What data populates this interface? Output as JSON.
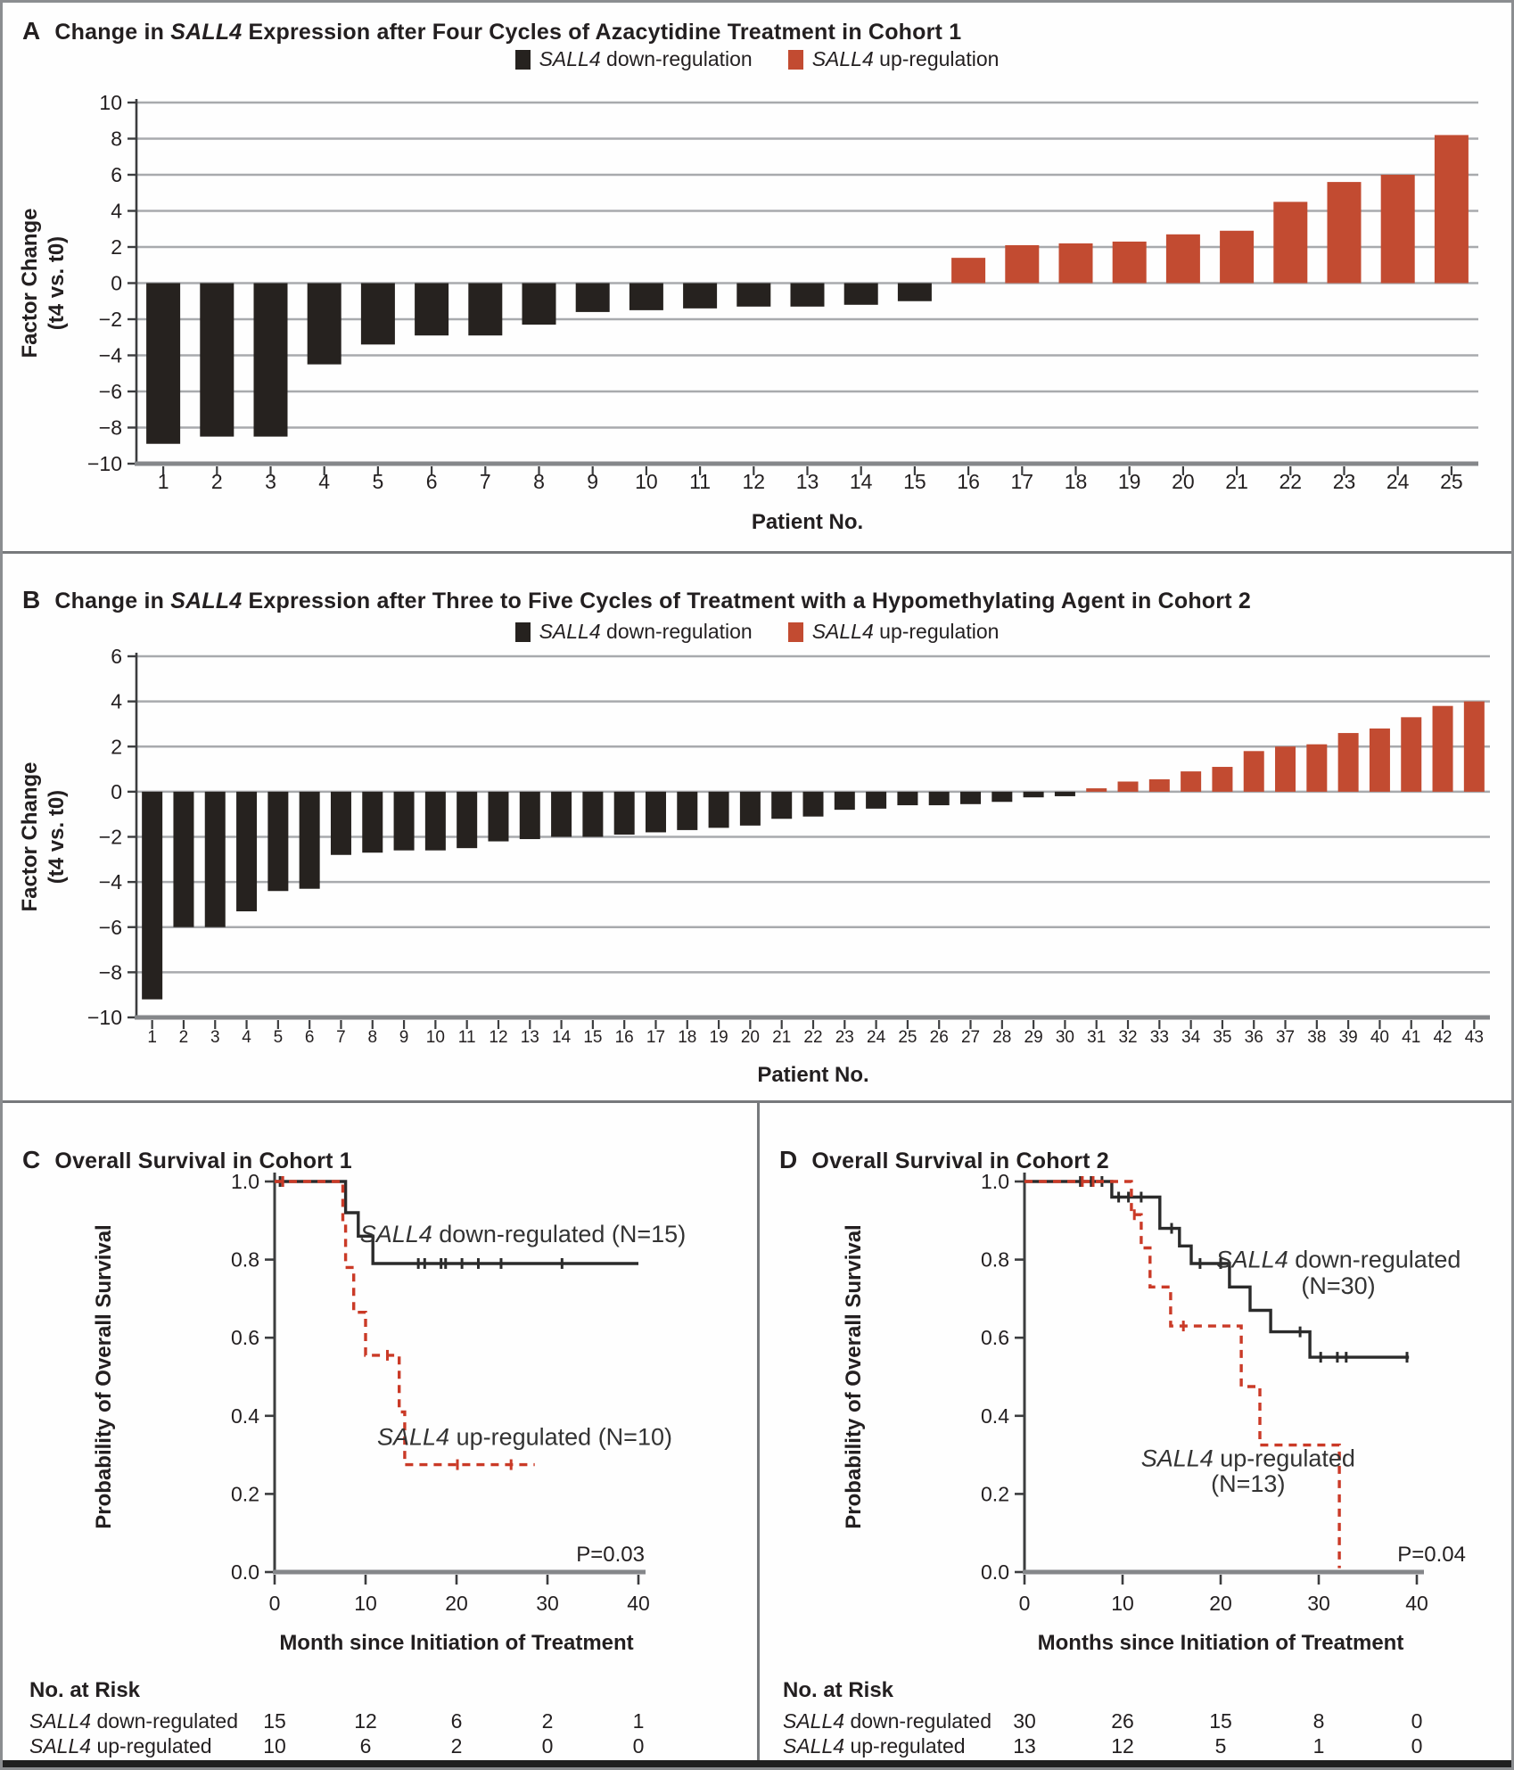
{
  "gene": "SALL4",
  "colors": {
    "down": "#26221f",
    "up": "#c24b31",
    "red_line": "#ca3a27",
    "grid": "#a8aaad",
    "axis_dark": "#3c3d3f",
    "axis_gray": "#85878a",
    "km_black": "#2b2b2b"
  },
  "panels": {
    "A": {
      "letter": "A",
      "title_pre": "Change in ",
      "title_post": " Expression after Four Cycles of Azacytidine Treatment in Cohort 1",
      "legend_down": " down-regulation",
      "legend_up": " up-regulation"
    },
    "B": {
      "letter": "B",
      "title_pre": "Change in ",
      "title_post": " Expression after Three to Five Cycles of Treatment with a Hypomethylating Agent in Cohort 2",
      "legend_down": " down-regulation",
      "legend_up": " up-regulation"
    },
    "C": {
      "letter": "C",
      "title": "Overall Survival in Cohort 1"
    },
    "D": {
      "letter": "D",
      "title": "Overall Survival in Cohort 2"
    }
  },
  "chart_data": [
    {
      "id": "A",
      "type": "bar",
      "title": "Change in SALL4 Expression after Four Cycles of Azacytidine Treatment in Cohort 1",
      "legend": [
        "SALL4 down-regulation",
        "SALL4 up-regulation"
      ],
      "ylabel_lines": [
        "Factor Change",
        "(t4 vs. t0)"
      ],
      "xlabel": "Patient No.",
      "ylim": [
        -10,
        10
      ],
      "yticks": [
        10,
        8,
        6,
        4,
        2,
        0,
        -2,
        -4,
        -6,
        -8,
        -10
      ],
      "categories": [
        "1",
        "2",
        "3",
        "4",
        "5",
        "6",
        "7",
        "8",
        "9",
        "10",
        "11",
        "12",
        "13",
        "14",
        "15",
        "16",
        "17",
        "18",
        "19",
        "20",
        "21",
        "22",
        "23",
        "24",
        "25"
      ],
      "values": [
        -8.9,
        -8.5,
        -8.5,
        -4.5,
        -3.4,
        -2.9,
        -2.9,
        -2.3,
        -1.6,
        -1.5,
        -1.4,
        -1.3,
        -1.3,
        -1.2,
        -1.0,
        1.4,
        2.1,
        2.2,
        2.3,
        2.7,
        2.9,
        4.5,
        5.6,
        6.0,
        8.2
      ]
    },
    {
      "id": "B",
      "type": "bar",
      "title": "Change in SALL4 Expression after Three to Five Cycles of Treatment with a Hypomethylating Agent in Cohort 2",
      "legend": [
        "SALL4 down-regulation",
        "SALL4 up-regulation"
      ],
      "ylabel_lines": [
        "Factor Change",
        "(t4 vs. t0)"
      ],
      "xlabel": "Patient No.",
      "ylim": [
        -10,
        6
      ],
      "yticks": [
        6,
        4,
        2,
        0,
        -2,
        -4,
        -6,
        -8,
        -10
      ],
      "categories": [
        "1",
        "2",
        "3",
        "4",
        "5",
        "6",
        "7",
        "8",
        "9",
        "10",
        "11",
        "12",
        "13",
        "14",
        "15",
        "16",
        "17",
        "18",
        "19",
        "20",
        "21",
        "22",
        "23",
        "24",
        "25",
        "26",
        "27",
        "28",
        "29",
        "30",
        "31",
        "32",
        "33",
        "34",
        "35",
        "36",
        "37",
        "38",
        "39",
        "40",
        "41",
        "42",
        "43"
      ],
      "values": [
        -9.2,
        -6.0,
        -6.0,
        -5.3,
        -4.4,
        -4.3,
        -2.8,
        -2.7,
        -2.6,
        -2.6,
        -2.5,
        -2.2,
        -2.1,
        -2.0,
        -2.0,
        -1.9,
        -1.8,
        -1.7,
        -1.6,
        -1.5,
        -1.2,
        -1.1,
        -0.8,
        -0.75,
        -0.6,
        -0.6,
        -0.55,
        -0.45,
        -0.25,
        -0.2,
        0.15,
        0.45,
        0.55,
        0.9,
        1.1,
        1.8,
        2.0,
        2.1,
        2.6,
        2.8,
        3.3,
        3.8,
        4.0
      ]
    },
    {
      "id": "C",
      "type": "km",
      "title": "Overall Survival in Cohort 1",
      "ylabel": "Probability of Overall Survival",
      "xlabel": "Month since Initiation of Treatment",
      "xlim": [
        0,
        40
      ],
      "xticks": [
        0,
        10,
        20,
        30,
        40
      ],
      "yticks": [
        "1.0",
        "0.8",
        "0.6",
        "0.4",
        "0.2",
        "0.0"
      ],
      "p_value": "P=0.03",
      "series": [
        {
          "key": "down",
          "style": "solid",
          "n": 15,
          "steps": [
            [
              0,
              1.0
            ],
            [
              7.8,
              1.0
            ],
            [
              7.8,
              0.92
            ],
            [
              9.2,
              0.92
            ],
            [
              9.2,
              0.86
            ],
            [
              10.8,
              0.86
            ],
            [
              10.8,
              0.79
            ],
            [
              40,
              0.79
            ]
          ],
          "censors": [
            [
              0.6,
              1.0
            ],
            [
              15.8,
              0.79
            ],
            [
              16.5,
              0.79
            ],
            [
              18.3,
              0.79
            ],
            [
              18.8,
              0.79
            ],
            [
              20.6,
              0.79
            ],
            [
              22.4,
              0.79
            ],
            [
              24.9,
              0.79
            ],
            [
              31.6,
              0.79
            ]
          ],
          "labels": [
            {
              "gene": "SALL4",
              "rest": " down-regulated (N=15)",
              "pos": [
                27.3,
                0.845
              ]
            }
          ]
        },
        {
          "key": "up",
          "style": "dashed",
          "n": 10,
          "steps": [
            [
              0,
              1.0
            ],
            [
              7.5,
              1.0
            ],
            [
              7.5,
              0.89
            ],
            [
              7.8,
              0.89
            ],
            [
              7.8,
              0.78
            ],
            [
              8.7,
              0.78
            ],
            [
              8.7,
              0.665
            ],
            [
              10,
              0.665
            ],
            [
              10,
              0.555
            ],
            [
              13.7,
              0.555
            ],
            [
              13.7,
              0.41
            ],
            [
              14.3,
              0.41
            ],
            [
              14.3,
              0.275
            ],
            [
              28.6,
              0.275
            ]
          ],
          "censors": [
            [
              0.9,
              1.0
            ],
            [
              12.4,
              0.555
            ],
            [
              20.1,
              0.275
            ],
            [
              26.0,
              0.275
            ]
          ],
          "labels": [
            {
              "gene": "SALL4",
              "rest": " up-regulated (N=10)",
              "pos": [
                27.5,
                0.325
              ]
            }
          ]
        }
      ],
      "at_risk": {
        "heading": "No. at Risk",
        "rows": [
          {
            "label": {
              "gene": "SALL4",
              "rest": " down-regulated"
            },
            "counts": [
              "15",
              "12",
              "6",
              "2",
              "1"
            ]
          },
          {
            "label": {
              "gene": "SALL4",
              "rest": " up-regulated"
            },
            "counts": [
              "10",
              "6",
              "2",
              "0",
              "0"
            ]
          }
        ]
      }
    },
    {
      "id": "D",
      "type": "km",
      "title": "Overall Survival in Cohort 2",
      "ylabel": "Probability of Overall Survival",
      "xlabel": "Months since Initiation of Treatment",
      "xlim": [
        0,
        40
      ],
      "xticks": [
        0,
        10,
        20,
        30,
        40
      ],
      "yticks": [
        "1.0",
        "0.8",
        "0.6",
        "0.4",
        "0.2",
        "0.0"
      ],
      "p_value": "P=0.04",
      "series": [
        {
          "key": "down",
          "style": "solid",
          "n": 30,
          "steps": [
            [
              0,
              1.0
            ],
            [
              8.9,
              1.0
            ],
            [
              8.9,
              0.96
            ],
            [
              13.8,
              0.96
            ],
            [
              13.8,
              0.88
            ],
            [
              15.8,
              0.88
            ],
            [
              15.8,
              0.835
            ],
            [
              17,
              0.835
            ],
            [
              17,
              0.79
            ],
            [
              20.9,
              0.79
            ],
            [
              20.9,
              0.73
            ],
            [
              23,
              0.73
            ],
            [
              23,
              0.67
            ],
            [
              25.1,
              0.67
            ],
            [
              25.1,
              0.615
            ],
            [
              29.1,
              0.615
            ],
            [
              29.1,
              0.55
            ],
            [
              39.2,
              0.55
            ]
          ],
          "censors": [
            [
              5.7,
              1.0
            ],
            [
              6.8,
              1.0
            ],
            [
              7.9,
              1.0
            ],
            [
              9.6,
              0.96
            ],
            [
              10.6,
              0.96
            ],
            [
              11.9,
              0.96
            ],
            [
              15.0,
              0.88
            ],
            [
              17.9,
              0.79
            ],
            [
              20.0,
              0.79
            ],
            [
              28.1,
              0.615
            ],
            [
              30.2,
              0.55
            ],
            [
              31.9,
              0.55
            ],
            [
              32.8,
              0.55
            ],
            [
              39.0,
              0.55
            ]
          ],
          "labels": [
            {
              "gene": "SALL4",
              "rest": " down-regulated",
              "pos": [
                32.0,
                0.78
              ]
            },
            {
              "gene": "",
              "rest": "(N=30)",
              "pos": [
                32.0,
                0.712
              ]
            }
          ]
        },
        {
          "key": "up",
          "style": "dashed",
          "n": 13,
          "steps": [
            [
              0,
              1.0
            ],
            [
              10.9,
              1.0
            ],
            [
              10.9,
              0.915
            ],
            [
              11.9,
              0.915
            ],
            [
              11.9,
              0.83
            ],
            [
              12.8,
              0.83
            ],
            [
              12.8,
              0.73
            ],
            [
              14.9,
              0.73
            ],
            [
              14.9,
              0.63
            ],
            [
              22.1,
              0.63
            ],
            [
              22.1,
              0.475
            ],
            [
              24,
              0.475
            ],
            [
              24,
              0.325
            ],
            [
              32.1,
              0.325
            ],
            [
              32.1,
              0.01
            ]
          ],
          "censors": [
            [
              5.9,
              1.0
            ],
            [
              7.0,
              1.0
            ],
            [
              11.2,
              0.915
            ],
            [
              16.2,
              0.63
            ]
          ],
          "labels": [
            {
              "gene": "SALL4",
              "rest": " up-regulated",
              "pos": [
                22.8,
                0.27
              ]
            },
            {
              "gene": "",
              "rest": "(N=13)",
              "pos": [
                22.8,
                0.205
              ]
            }
          ]
        }
      ],
      "at_risk": {
        "heading": "No. at Risk",
        "rows": [
          {
            "label": {
              "gene": "SALL4",
              "rest": " down-regulated"
            },
            "counts": [
              "30",
              "26",
              "15",
              "8",
              "0"
            ]
          },
          {
            "label": {
              "gene": "SALL4",
              "rest": " up-regulated"
            },
            "counts": [
              "13",
              "12",
              "5",
              "1",
              "0"
            ]
          }
        ]
      }
    }
  ]
}
